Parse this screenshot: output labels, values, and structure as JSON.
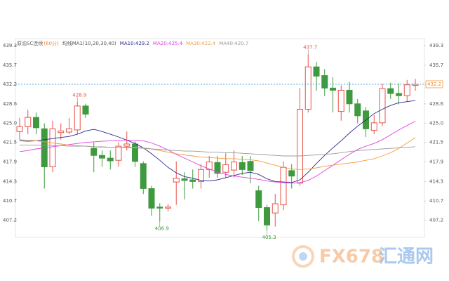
{
  "chart_data": {
    "type": "candlestick",
    "title": "原油SC连续",
    "subtitle": "(60分)",
    "indicator": "均线MA1(10,20,30,40)",
    "up_color": "#e8524a",
    "down_color": "#3f9a3f",
    "ylim": [
      404.0,
      440.6
    ],
    "yticks": [
      439.3,
      435.7,
      432.2,
      428.6,
      {
        "value": 425,
        "label": "425.0"
      },
      421.5,
      417.9,
      414.3,
      410.7,
      407.2
    ],
    "open": [
      423.5,
      424.4,
      426.1,
      424.0,
      417.0,
      423.3,
      423.4,
      423.8,
      428.2,
      420.4,
      419.1,
      418.6,
      418.2,
      420.8,
      421.2,
      417.6,
      413.0,
      409.6,
      409.4,
      414.2,
      414.8,
      414.6,
      414.3,
      416.5,
      417.8,
      416.0,
      416.4,
      417.8,
      418.0,
      412.6,
      409.5,
      408.5,
      410.0,
      416.3,
      414.0,
      427.6,
      435.4,
      433.8,
      431.5,
      427.2,
      431.1,
      428.6,
      427.3,
      423.7,
      425.1,
      431.4,
      430.5,
      430.1,
      432.0
    ],
    "high": [
      426.0,
      427.5,
      427.0,
      425.0,
      425.5,
      425.0,
      426.0,
      428.9,
      428.6,
      421.5,
      420.0,
      420.0,
      421.5,
      423.5,
      421.7,
      418.0,
      413.5,
      410.3,
      410.2,
      418.0,
      416.0,
      416.5,
      417.5,
      419.0,
      419.0,
      419.5,
      420.0,
      419.0,
      419.0,
      413.5,
      410.0,
      412.0,
      418.0,
      417.5,
      431.5,
      437.7,
      436.3,
      435.0,
      433.5,
      432.0,
      432.6,
      429.5,
      428.0,
      426.5,
      432.3,
      432.5,
      432.3,
      433.0,
      433.2
    ],
    "low": [
      422.0,
      423.0,
      423.0,
      413.0,
      416.0,
      422.0,
      423.0,
      423.0,
      426.0,
      416.0,
      417.0,
      416.5,
      417.0,
      420.0,
      417.0,
      412.0,
      408.0,
      406.9,
      408.8,
      410.0,
      411.0,
      413.0,
      413.0,
      415.0,
      415.0,
      415.0,
      415.0,
      415.5,
      414.0,
      407.0,
      405.3,
      406.0,
      409.0,
      413.0,
      413.5,
      427.0,
      431.0,
      430.0,
      427.0,
      425.5,
      427.0,
      425.0,
      422.5,
      423.0,
      424.5,
      429.5,
      428.5,
      429.0,
      431.0
    ],
    "close": [
      424.4,
      426.1,
      424.2,
      417.0,
      424.0,
      423.6,
      424.0,
      428.2,
      426.7,
      419.1,
      418.6,
      418.1,
      420.8,
      421.2,
      418.0,
      413.0,
      409.4,
      409.4,
      409.6,
      414.9,
      414.5,
      414.3,
      416.5,
      417.9,
      415.8,
      417.4,
      417.9,
      416.5,
      416.3,
      409.5,
      406.3,
      410.2,
      416.9,
      415.3,
      427.6,
      435.4,
      433.7,
      431.5,
      431.1,
      431.1,
      428.6,
      426.4,
      424.0,
      425.1,
      431.4,
      430.5,
      430.1,
      432.1,
      432.2
    ],
    "annotations": [
      437.7,
      428.9,
      406.9,
      405.3
    ],
    "ma_series": [
      {
        "name": "MA10:429.2",
        "color": "#2a2a8c",
        "values": [
          421.8,
          421.7,
          421.8,
          422.0,
          422.2,
          422.4,
          422.6,
          423.0,
          423.6,
          423.9,
          423.5,
          423.0,
          422.5,
          421.9,
          421.3,
          420.5,
          419.4,
          418.2,
          416.9,
          415.9,
          415.2,
          414.9,
          414.5,
          414.4,
          414.6,
          415.0,
          415.4,
          415.8,
          416.0,
          415.6,
          414.8,
          414.3,
          414.2,
          414.1,
          414.6,
          416.0,
          417.6,
          419.1,
          420.5,
          421.8,
          423.2,
          424.5,
          425.6,
          426.8,
          427.6,
          428.3,
          428.8,
          429.0,
          429.2
        ]
      },
      {
        "name": "MA20:425.4",
        "color": "#e040e0",
        "values": [
          419.8,
          420.0,
          420.3,
          420.5,
          420.7,
          420.9,
          421.1,
          421.3,
          421.5,
          421.6,
          421.7,
          421.8,
          421.8,
          421.9,
          421.9,
          421.8,
          421.4,
          420.8,
          420.1,
          419.3,
          418.6,
          417.9,
          417.2,
          416.6,
          416.0,
          415.6,
          415.3,
          415.1,
          414.9,
          414.7,
          414.4,
          414.2,
          414.1,
          414.0,
          414.1,
          414.5,
          415.3,
          416.3,
          417.3,
          418.3,
          419.3,
          420.2,
          420.8,
          421.3,
          422.0,
          422.9,
          423.8,
          424.6,
          425.4
        ]
      },
      {
        "name": "MA30:422.4",
        "color": "#f39c3c",
        "values": [
          422.0,
          421.9,
          421.8,
          421.6,
          421.4,
          421.2,
          421.0,
          420.9,
          420.8,
          420.7,
          420.6,
          420.6,
          420.6,
          420.6,
          420.6,
          420.5,
          420.3,
          420.0,
          419.7,
          419.4,
          419.2,
          419.0,
          418.8,
          418.7,
          418.6,
          418.5,
          418.5,
          418.4,
          418.3,
          418.1,
          417.7,
          417.3,
          416.9,
          416.6,
          416.5,
          416.6,
          416.8,
          417.1,
          417.3,
          417.5,
          417.7,
          417.9,
          418.2,
          418.5,
          419.0,
          419.6,
          420.4,
          421.4,
          422.4
        ]
      },
      {
        "name": "MA40:420.7",
        "color": "#9a9a9a",
        "values": [
          421.0,
          421.0,
          421.0,
          421.0,
          420.9,
          420.9,
          420.8,
          420.8,
          420.8,
          420.7,
          420.7,
          420.6,
          420.6,
          420.5,
          420.5,
          420.4,
          420.3,
          420.2,
          420.1,
          420.0,
          419.9,
          419.9,
          419.8,
          419.7,
          419.7,
          419.6,
          419.6,
          419.5,
          419.4,
          419.3,
          419.2,
          419.1,
          419.0,
          419.0,
          419.0,
          419.1,
          419.2,
          419.3,
          419.4,
          419.6,
          419.8,
          420.0,
          420.1,
          420.2,
          420.3,
          420.4,
          420.5,
          420.6,
          420.7
        ]
      }
    ],
    "watermark": [
      "FX678",
      "汇通网"
    ]
  }
}
